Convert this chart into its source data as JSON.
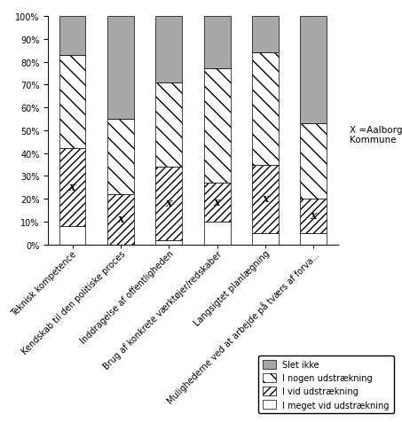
{
  "categories": [
    "Teknisk kompetence",
    "Kendskab til den politiske proces",
    "Inddragelse af offentligheden",
    "Brug af konkrete værktøjer/redskaber",
    "Langsigtet planlægning",
    "Mulighederne ved at arbejde på tværs af forva..."
  ],
  "series": {
    "I meget vid udstrækning": [
      8,
      0,
      2,
      10,
      5,
      5
    ],
    "I vid udstrækning": [
      34,
      22,
      32,
      17,
      30,
      15
    ],
    "I nogen udstrækning": [
      41,
      33,
      37,
      50,
      49,
      33
    ],
    "Slet ikke": [
      17,
      45,
      29,
      23,
      16,
      47
    ]
  },
  "annotation": "X =Aalborg\nKommune",
  "background_color": "#ffffff",
  "bar_width": 0.55,
  "figsize": [
    4.53,
    4.77
  ],
  "dpi": 100
}
